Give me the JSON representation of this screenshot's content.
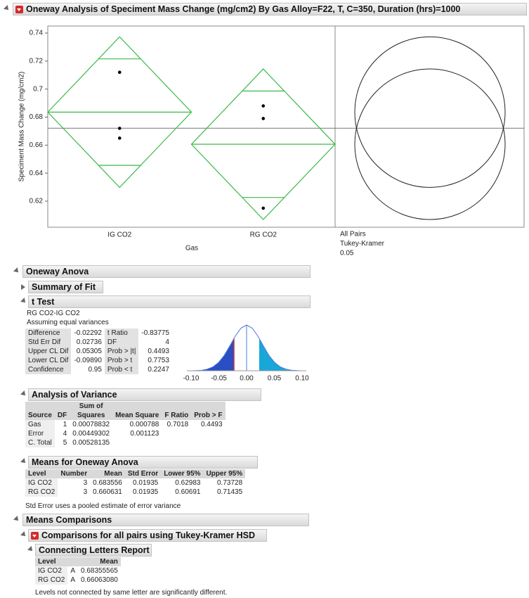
{
  "title": "Oneway Analysis of Speciment Mass Change (mg/cm2) By Gas Alloy=F22, T, C=350, Duration (hrs)=1000",
  "plot": {
    "y_label": "Speciment Mass Change (mg/cm2)",
    "x_label": "Gas",
    "categories": [
      "IG CO2",
      "RG CO2"
    ],
    "ylim": [
      0.6014,
      0.745
    ],
    "yticks": [
      0.62,
      0.64,
      0.66,
      0.68,
      0.7,
      0.72,
      0.74
    ],
    "points": [
      [
        0.712,
        0.672,
        0.665
      ],
      [
        0.688,
        0.679,
        0.615
      ]
    ],
    "grand_mean": 0.6721,
    "comparison_labels": [
      "All Pairs",
      "Tukey-Kramer",
      "0.05"
    ]
  },
  "oneway_anova": {
    "title": "Oneway Anova",
    "summary_of_fit": "Summary of Fit",
    "t_test": {
      "title": "t Test",
      "comparison": "RG CO2-IG CO2",
      "note": "Assuming equal variances",
      "rows": [
        [
          "Difference",
          "-0.02292",
          "t Ratio",
          "-0.83775"
        ],
        [
          "Std Err Dif",
          "0.02736",
          "DF",
          "4"
        ],
        [
          "Upper CL Dif",
          "0.05305",
          "Prob > |t|",
          "0.4493"
        ],
        [
          "Lower CL Dif",
          "-0.09890",
          "Prob > t",
          "0.7753"
        ],
        [
          "Confidence",
          "0.95",
          "Prob < t",
          "0.2247"
        ]
      ],
      "axis_labels": [
        "-0.10",
        "-0.05",
        "0.00",
        "0.05",
        "0.10"
      ]
    },
    "anova": {
      "title": "Analysis of Variance",
      "columns": [
        "Source",
        "DF",
        "Sum of Squares",
        "Mean Square",
        "F Ratio",
        "Prob > F"
      ],
      "rows": [
        [
          "Gas",
          "1",
          "0.00078832",
          "0.000788",
          "0.7018",
          "0.4493"
        ],
        [
          "Error",
          "4",
          "0.00449302",
          "0.001123"
        ],
        [
          "C. Total",
          "5",
          "0.00528135"
        ]
      ]
    },
    "means": {
      "title": "Means for Oneway Anova",
      "columns": [
        "Level",
        "Number",
        "Mean",
        "Std Error",
        "Lower 95%",
        "Upper 95%"
      ],
      "rows": [
        [
          "IG CO2",
          3,
          0.683556,
          0.01935,
          0.62983,
          0.73728
        ],
        [
          "RG CO2",
          3,
          0.660631,
          0.01935,
          0.60691,
          0.71435
        ]
      ],
      "note": "Std Error uses a pooled estimate of error variance"
    }
  },
  "means_comparisons": {
    "title": "Means Comparisons",
    "tukey": {
      "title": "Comparisons for all pairs using Tukey-Kramer HSD",
      "connecting_letters": {
        "title": "Connecting Letters Report",
        "columns": [
          "Level",
          "Mean"
        ],
        "rows": [
          [
            "IG CO2",
            "A",
            "0.68355565"
          ],
          [
            "RG CO2",
            "A",
            "0.66063080"
          ]
        ],
        "note": "Levels not connected by same letter are significantly different."
      }
    }
  }
}
